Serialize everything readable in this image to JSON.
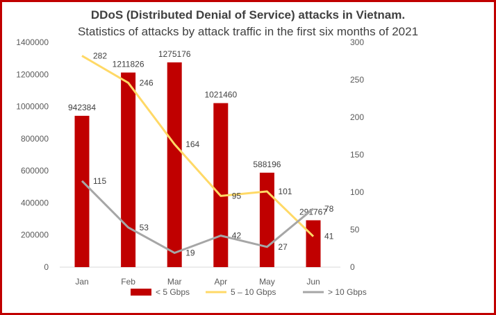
{
  "chart_data": {
    "type": "bar",
    "title": "DDoS (Distributed Denial of Service) attacks in Vietnam.",
    "subtitle": "Statistics of attacks by attack traffic in the first six months of 2021",
    "categories": [
      "Jan",
      "Feb",
      "Mar",
      "Apr",
      "May",
      "Jun"
    ],
    "series": [
      {
        "name": "< 5 Gbps",
        "type": "bar",
        "axis": "left",
        "color": "#c00000",
        "values": [
          942384,
          1211826,
          1275176,
          1021460,
          588196,
          291767
        ]
      },
      {
        "name": "5 – 10 Gbps",
        "type": "line",
        "axis": "right",
        "color": "#ffd966",
        "values": [
          282,
          246,
          164,
          95,
          101,
          41
        ]
      },
      {
        "name": "> 10 Gbps",
        "type": "line",
        "axis": "right",
        "color": "#a6a6a6",
        "values": [
          115,
          53,
          19,
          42,
          27,
          78
        ]
      }
    ],
    "y_left": {
      "min": 0,
      "max": 1400000,
      "ticks": [
        0,
        200000,
        400000,
        600000,
        800000,
        1000000,
        1200000,
        1400000
      ]
    },
    "y_right": {
      "min": 0,
      "max": 300,
      "ticks": [
        0,
        50,
        100,
        150,
        200,
        250,
        300
      ]
    },
    "grid": false,
    "legend_position": "bottom"
  }
}
